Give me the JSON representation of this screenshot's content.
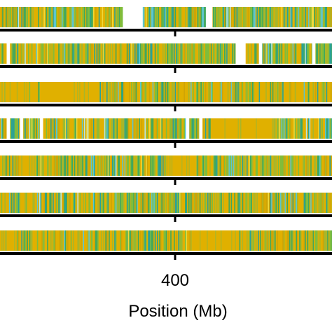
{
  "chart_data": {
    "type": "heatmap",
    "title": "",
    "xlabel": "Position (Mb)",
    "ylabel": "",
    "tick_values": [
      400
    ],
    "tick_labels": [
      "400"
    ],
    "ylim": null,
    "grid": false,
    "legend": "none",
    "colors": {
      "gold": "#e0b000",
      "goldDark": "#cfa405",
      "olive": "#a8b62a",
      "lime": "#7fbd3c",
      "green": "#3fa85e",
      "teal": "#2aa296",
      "cyan": "#5cc6cf",
      "paleCyan": "#b7e6e2",
      "yellow": "#f0d83a",
      "axis": "#000000"
    },
    "tracks": [
      {
        "name": "",
        "seed": 11,
        "weights": {
          "gold": 0.28,
          "goldDark": 0.1,
          "olive": 0.16,
          "lime": 0.16,
          "green": 0.12,
          "teal": 0.08,
          "cyan": 0.06,
          "paleCyan": 0.02,
          "yellow": 0.02
        },
        "gaps": [
          [
            0.37,
            0.43
          ],
          [
            0.62,
            0.64
          ]
        ]
      },
      {
        "name": "",
        "seed": 23,
        "weights": {
          "gold": 0.3,
          "goldDark": 0.08,
          "olive": 0.16,
          "lime": 0.16,
          "green": 0.14,
          "teal": 0.08,
          "cyan": 0.04,
          "paleCyan": 0.02,
          "yellow": 0.02
        },
        "gaps": [
          [
            0.02,
            0.03
          ],
          [
            0.71,
            0.74
          ],
          [
            0.78,
            0.79
          ],
          [
            0.94,
            0.95
          ]
        ]
      },
      {
        "name": "",
        "seed": 37,
        "weights": {
          "gold": 0.52,
          "goldDark": 0.12,
          "olive": 0.1,
          "lime": 0.1,
          "green": 0.08,
          "teal": 0.05,
          "cyan": 0.02,
          "paleCyan": 0.0,
          "yellow": 0.01
        },
        "gaps": []
      },
      {
        "name": "",
        "seed": 41,
        "weights": {
          "gold": 0.32,
          "goldDark": 0.08,
          "olive": 0.14,
          "lime": 0.14,
          "green": 0.12,
          "teal": 0.08,
          "cyan": 0.06,
          "paleCyan": 0.03,
          "yellow": 0.03
        },
        "gaps": [
          [
            0.02,
            0.03
          ],
          [
            0.06,
            0.07
          ],
          [
            0.12,
            0.13
          ],
          [
            0.56,
            0.57
          ],
          [
            0.6,
            0.61
          ]
        ]
      },
      {
        "name": "",
        "seed": 53,
        "weights": {
          "gold": 0.34,
          "goldDark": 0.1,
          "olive": 0.16,
          "lime": 0.16,
          "green": 0.12,
          "teal": 0.06,
          "cyan": 0.04,
          "paleCyan": 0.01,
          "yellow": 0.01
        },
        "gaps": []
      },
      {
        "name": "",
        "seed": 67,
        "weights": {
          "gold": 0.34,
          "goldDark": 0.1,
          "olive": 0.16,
          "lime": 0.14,
          "green": 0.12,
          "teal": 0.08,
          "cyan": 0.04,
          "paleCyan": 0.01,
          "yellow": 0.01
        },
        "gaps": []
      },
      {
        "name": "",
        "seed": 79,
        "weights": {
          "gold": 0.4,
          "goldDark": 0.12,
          "olive": 0.16,
          "lime": 0.12,
          "green": 0.1,
          "teal": 0.06,
          "cyan": 0.03,
          "paleCyan": 0.0,
          "yellow": 0.01
        },
        "gaps": []
      }
    ],
    "solid_blocks": [
      {
        "track": 2,
        "from": 0.0,
        "to": 0.08,
        "color": "gold"
      },
      {
        "track": 2,
        "from": 0.12,
        "to": 0.3,
        "color": "gold"
      },
      {
        "track": 3,
        "from": 0.64,
        "to": 0.82,
        "color": "gold"
      },
      {
        "track": 4,
        "from": 0.5,
        "to": 0.59,
        "color": "gold"
      },
      {
        "track": 6,
        "from": 0.58,
        "to": 0.72,
        "color": "gold"
      },
      {
        "track": 6,
        "from": 0.0,
        "to": 0.05,
        "color": "gold"
      }
    ]
  }
}
